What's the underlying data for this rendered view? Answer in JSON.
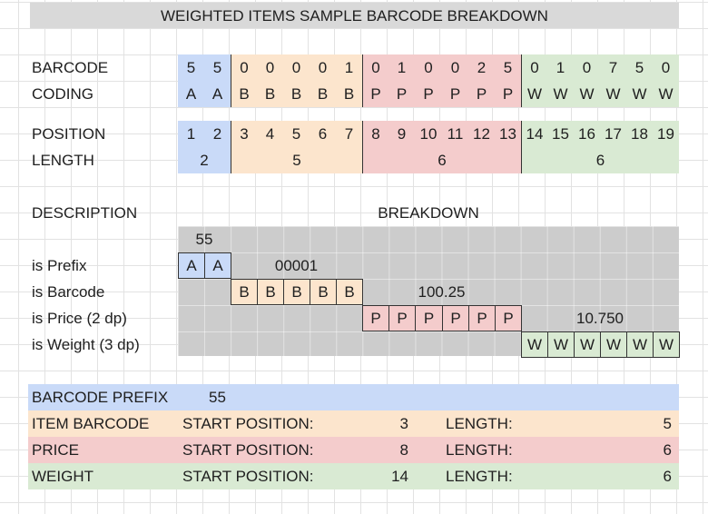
{
  "title": "WEIGHTED ITEMS SAMPLE BARCODE BREAKDOWN",
  "colors": {
    "blue": "#c9daf8",
    "orange": "#fce5cd",
    "red": "#f4cccc",
    "green": "#d9ead3",
    "gray": "#cccccc",
    "title_bg": "#d9d9d9"
  },
  "labels": {
    "barcode": "BARCODE",
    "coding": "CODING",
    "position": "POSITION",
    "length": "LENGTH",
    "description": "DESCRIPTION",
    "breakdown": "BREAKDOWN"
  },
  "barcode_digits": [
    "5",
    "5",
    "0",
    "0",
    "0",
    "0",
    "1",
    "0",
    "1",
    "0",
    "0",
    "2",
    "5",
    "0",
    "1",
    "0",
    "7",
    "5",
    "0"
  ],
  "coding_letters": [
    "A",
    "A",
    "B",
    "B",
    "B",
    "B",
    "B",
    "P",
    "P",
    "P",
    "P",
    "P",
    "P",
    "W",
    "W",
    "W",
    "W",
    "W",
    "W"
  ],
  "positions": [
    "1",
    "2",
    "3",
    "4",
    "5",
    "6",
    "7",
    "8",
    "9",
    "10",
    "11",
    "12",
    "13",
    "14",
    "15",
    "16",
    "17",
    "18",
    "19"
  ],
  "lengths": {
    "prefix": "2",
    "barcode": "5",
    "price": "6",
    "weight": "6"
  },
  "breakdown": {
    "prefix_value": "55",
    "barcode_value": "00001",
    "price_value": "100.25",
    "weight_value": "10.750",
    "rows": [
      "is Prefix",
      "is Barcode",
      "is Price (2 dp)",
      "is Weight (3 dp)"
    ]
  },
  "summary": {
    "prefix_label": "BARCODE PREFIX",
    "prefix_value": "55",
    "rows": [
      {
        "name": "ITEM BARCODE",
        "start_label": "START POSITION:",
        "start": "3",
        "length_label": "LENGTH:",
        "length": "5"
      },
      {
        "name": "PRICE",
        "start_label": "START POSITION:",
        "start": "8",
        "length_label": "LENGTH:",
        "length": "6"
      },
      {
        "name": "WEIGHT",
        "start_label": "START POSITION:",
        "start": "14",
        "length_label": "LENGTH:",
        "length": "6"
      }
    ]
  }
}
